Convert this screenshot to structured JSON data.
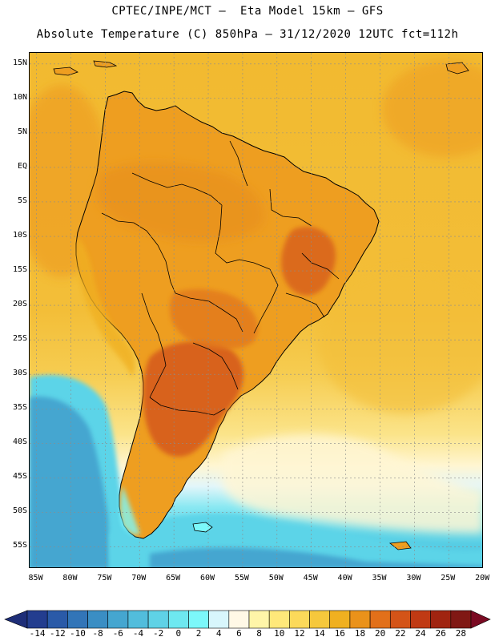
{
  "header": {
    "line1": "CPTEC/INPE/MCT –  Eta Model 15km – GFS",
    "line2": "Absolute Temperature (C) 850hPa – 31/12/2020 12UTC fct=112h"
  },
  "map": {
    "variable": "Absolute Temperature",
    "units": "C",
    "level": "850hPa",
    "lat_labels": [
      "15N",
      "10N",
      "5N",
      "EQ",
      "5S",
      "10S",
      "15S",
      "20S",
      "25S",
      "30S",
      "35S",
      "40S",
      "45S",
      "50S",
      "55S"
    ],
    "lat_values": [
      15,
      10,
      5,
      0,
      -5,
      -10,
      -15,
      -20,
      -25,
      -30,
      -35,
      -40,
      -45,
      -50,
      -55
    ],
    "lon_labels": [
      "85W",
      "80W",
      "75W",
      "70W",
      "65W",
      "60W",
      "55W",
      "50W",
      "45W",
      "40W",
      "35W",
      "30W",
      "25W",
      "20W"
    ],
    "lon_values": [
      -85,
      -80,
      -75,
      -70,
      -65,
      -60,
      -55,
      -50,
      -45,
      -40,
      -35,
      -30,
      -25,
      -20
    ],
    "lat_range": [
      -58.2,
      16.6
    ],
    "lon_range": [
      -86.0,
      -19.9
    ]
  },
  "colorbar": {
    "labels": [
      "-14",
      "-12",
      "-10",
      "-8",
      "-6",
      "-4",
      "-2",
      "0",
      "2",
      "4",
      "6",
      "8",
      "10",
      "12",
      "14",
      "16",
      "18",
      "20",
      "22",
      "24",
      "26",
      "28"
    ],
    "levels": [
      -14,
      -12,
      -10,
      -8,
      -6,
      -4,
      -2,
      0,
      2,
      4,
      6,
      8,
      10,
      12,
      14,
      16,
      18,
      20,
      22,
      24,
      26,
      28
    ],
    "under_color": "#1e2e78",
    "over_color": "#7a0a22",
    "colors": [
      "#233d8f",
      "#2a5aa8",
      "#3275b8",
      "#3a8ec4",
      "#45a6d0",
      "#52bddc",
      "#5fd2e6",
      "#6ee8f0",
      "#7cf8fa",
      "#d8f6fc",
      "#fff8e6",
      "#fff5a8",
      "#ffe87a",
      "#fcd95a",
      "#f6c83c",
      "#f0b020",
      "#ea921a",
      "#e2701a",
      "#d45418",
      "#c03a14",
      "#a02410",
      "#801814"
    ]
  },
  "palette": {
    "ocean_warm": "#f2b82c",
    "land_warm": "#ee9e20",
    "hot_core": "#d8621a",
    "cold_sea": "#45a6d0",
    "coast_line": "#000000",
    "grid_line": "#8c8c8c"
  }
}
